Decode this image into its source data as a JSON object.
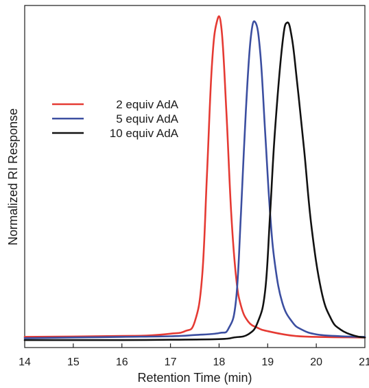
{
  "chart_data": {
    "type": "line",
    "title": "",
    "xlabel": "Retention Time (min)",
    "ylabel": "Normalized RI Response",
    "xlim": [
      14,
      21
    ],
    "ylim": [
      0,
      1
    ],
    "xticks": [
      14,
      15,
      16,
      17,
      18,
      19,
      20,
      21
    ],
    "yticks": [],
    "grid": false,
    "legend_position": "upper-left",
    "series": [
      {
        "name": "2 equiv AdA",
        "color": "#e53a33",
        "x": [
          14.0,
          15.0,
          16.0,
          16.5,
          17.0,
          17.3,
          17.5,
          17.65,
          17.75,
          17.85,
          17.95,
          18.05,
          18.15,
          18.25,
          18.35,
          18.45,
          18.6,
          18.8,
          19.0,
          19.5,
          20.0,
          21.0
        ],
        "y": [
          0.012,
          0.013,
          0.015,
          0.016,
          0.022,
          0.03,
          0.06,
          0.2,
          0.52,
          0.86,
          1.0,
          0.98,
          0.72,
          0.4,
          0.2,
          0.11,
          0.06,
          0.04,
          0.03,
          0.016,
          0.012,
          0.01
        ]
      },
      {
        "name": "5 equiv AdA",
        "color": "#3b4ea0",
        "x": [
          14.0,
          15.0,
          16.0,
          17.0,
          17.5,
          18.0,
          18.2,
          18.35,
          18.45,
          18.55,
          18.65,
          18.75,
          18.85,
          18.95,
          19.05,
          19.15,
          19.3,
          19.5,
          19.7,
          20.0,
          20.5,
          21.0
        ],
        "y": [
          0.008,
          0.01,
          0.012,
          0.014,
          0.018,
          0.024,
          0.04,
          0.13,
          0.4,
          0.72,
          0.95,
          1.0,
          0.9,
          0.65,
          0.4,
          0.24,
          0.12,
          0.06,
          0.035,
          0.02,
          0.014,
          0.012
        ]
      },
      {
        "name": "10 equiv AdA",
        "color": "#111111",
        "x": [
          14.0,
          15.0,
          16.0,
          17.0,
          18.0,
          18.3,
          18.6,
          18.8,
          18.95,
          19.05,
          19.15,
          19.3,
          19.4,
          19.5,
          19.6,
          19.75,
          19.9,
          20.1,
          20.3,
          20.5,
          20.8,
          21.0
        ],
        "y": [
          0.002,
          0.002,
          0.002,
          0.003,
          0.005,
          0.01,
          0.02,
          0.06,
          0.16,
          0.4,
          0.66,
          0.93,
          1.0,
          0.95,
          0.82,
          0.6,
          0.36,
          0.16,
          0.07,
          0.035,
          0.015,
          0.01
        ]
      }
    ]
  }
}
